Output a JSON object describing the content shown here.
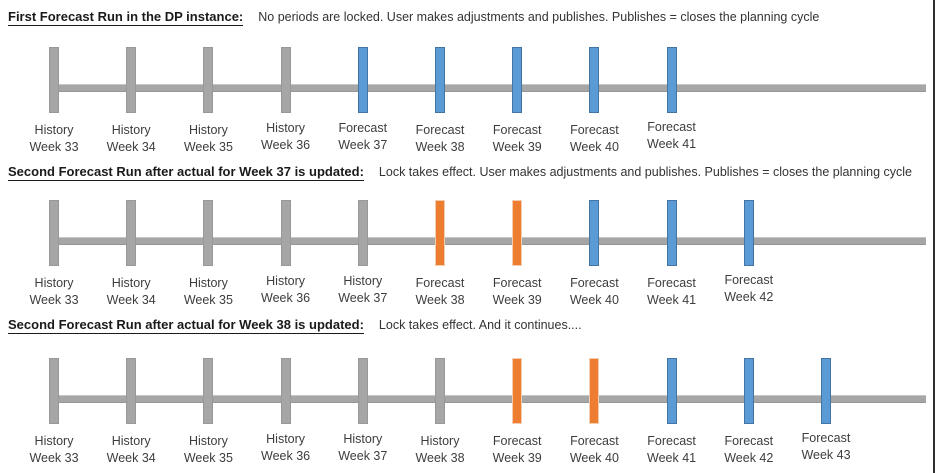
{
  "colors": {
    "history_tick": "#a6a6a6",
    "forecast_open_tick": "#5b9bd5",
    "forecast_locked_tick": "#ed7d31",
    "axis_line": "#a6a6a6",
    "heading_text": "#1a1a1a",
    "label_text": "#3d3d3d"
  },
  "sections": [
    {
      "heading": "First Forecast Run in the DP instance:",
      "description": "No periods are locked. User makes adjustments and publishes. Publishes = closes the planning cycle",
      "ticks": [
        {
          "label": "History",
          "week": "Week 33",
          "color": "gray"
        },
        {
          "label": "History",
          "week": "Week 34",
          "color": "gray"
        },
        {
          "label": "History",
          "week": "Week 35",
          "color": "gray"
        },
        {
          "label": "History",
          "week": "Week 36",
          "color": "gray"
        },
        {
          "label": "Forecast",
          "week": "Week 37",
          "color": "blue"
        },
        {
          "label": "Forecast",
          "week": "Week 38",
          "color": "blue"
        },
        {
          "label": "Forecast",
          "week": "Week 39",
          "color": "blue"
        },
        {
          "label": "Forecast",
          "week": "Week 40",
          "color": "blue"
        },
        {
          "label": "Forecast",
          "week": "Week 41",
          "color": "blue"
        }
      ]
    },
    {
      "heading": "Second Forecast Run after actual for Week 37 is updated:",
      "description": "Lock takes effect. User makes adjustments and publishes. Publishes = closes the planning cycle",
      "ticks": [
        {
          "label": "History",
          "week": "Week 33",
          "color": "gray"
        },
        {
          "label": "History",
          "week": "Week 34",
          "color": "gray"
        },
        {
          "label": "History",
          "week": "Week 35",
          "color": "gray"
        },
        {
          "label": "History",
          "week": "Week 36",
          "color": "gray"
        },
        {
          "label": "History",
          "week": "Week 37",
          "color": "gray"
        },
        {
          "label": "Forecast",
          "week": "Week 38",
          "color": "orange"
        },
        {
          "label": "Forecast",
          "week": "Week 39",
          "color": "orange"
        },
        {
          "label": "Forecast",
          "week": "Week 40",
          "color": "blue"
        },
        {
          "label": "Forecast",
          "week": "Week 41",
          "color": "blue"
        },
        {
          "label": "Forecast",
          "week": "Week 42",
          "color": "blue"
        }
      ]
    },
    {
      "heading": "Second Forecast Run after actual for Week 38 is updated:",
      "description": "Lock takes effect. And it continues....",
      "ticks": [
        {
          "label": "History",
          "week": "Week 33",
          "color": "gray"
        },
        {
          "label": "History",
          "week": "Week 34",
          "color": "gray"
        },
        {
          "label": "History",
          "week": "Week 35",
          "color": "gray"
        },
        {
          "label": "History",
          "week": "Week 36",
          "color": "gray"
        },
        {
          "label": "History",
          "week": "Week 37",
          "color": "gray"
        },
        {
          "label": "History",
          "week": "Week 38",
          "color": "gray"
        },
        {
          "label": "Forecast",
          "week": "Week 39",
          "color": "orange"
        },
        {
          "label": "Forecast",
          "week": "Week 40",
          "color": "orange"
        },
        {
          "label": "Forecast",
          "week": "Week 41",
          "color": "blue"
        },
        {
          "label": "Forecast",
          "week": "Week 42",
          "color": "blue"
        },
        {
          "label": "Forecast",
          "week": "Week 43",
          "color": "blue"
        }
      ]
    }
  ]
}
